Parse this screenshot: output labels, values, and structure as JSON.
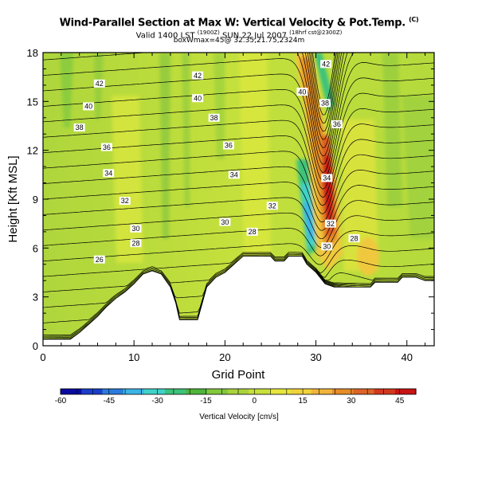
{
  "header": {
    "title": "Wind-Parallel Section at Max W: Vertical Velocity & Pot.Temp.",
    "title_mark": "(C)",
    "valid_pre": "Valid 1400 LST",
    "valid_sup1": "(1900Z)",
    "valid_mid": "SUN 22 Jul 2007",
    "valid_sup2": "(18hrf cst@2300Z)",
    "max_info": "boxWmax=45@ 32.35,21.75,2324m"
  },
  "chart_data": {
    "type": "heatmap",
    "xlabel": "Grid Point",
    "ylabel": "Height [Kft MSL]",
    "xlim": [
      0,
      43
    ],
    "ylim": [
      0,
      18
    ],
    "x_ticks": [
      0,
      10,
      20,
      30,
      40
    ],
    "y_ticks": [
      0,
      3,
      6,
      9,
      12,
      15,
      18
    ],
    "colorbar": {
      "label": "Vertical Velocity [cm/s]",
      "range": [
        -60,
        50
      ],
      "tick_values": [
        -60,
        -45,
        -30,
        -15,
        0,
        15,
        30,
        45
      ],
      "colors": [
        "#0a0aa0",
        "#1a3ec8",
        "#2a7adc",
        "#3cb4e6",
        "#40d2c8",
        "#3cc27a",
        "#4eb43c",
        "#82c83c",
        "#aad23c",
        "#c8e03c",
        "#e6e63c",
        "#f0d23c",
        "#f0b43c",
        "#e68c28",
        "#dc6428",
        "#d2381e",
        "#c81414"
      ]
    },
    "terrain_top_kft": [
      [
        0,
        0.4
      ],
      [
        3,
        0.4
      ],
      [
        4,
        0.8
      ],
      [
        5,
        1.3
      ],
      [
        6,
        1.8
      ],
      [
        7,
        2.4
      ],
      [
        8,
        2.9
      ],
      [
        9,
        3.3
      ],
      [
        10,
        3.8
      ],
      [
        11,
        4.4
      ],
      [
        12,
        4.6
      ],
      [
        13,
        4.4
      ],
      [
        14,
        3.6
      ],
      [
        14.6,
        2.6
      ],
      [
        15,
        1.6
      ],
      [
        17,
        1.6
      ],
      [
        17.6,
        2.8
      ],
      [
        18,
        3.6
      ],
      [
        19,
        4.2
      ],
      [
        20,
        4.5
      ],
      [
        21,
        5.0
      ],
      [
        22,
        5.5
      ],
      [
        25,
        5.5
      ],
      [
        25.5,
        5.2
      ],
      [
        26.5,
        5.2
      ],
      [
        27,
        5.5
      ],
      [
        28.5,
        5.5
      ],
      [
        29,
        5.0
      ],
      [
        30,
        4.5
      ],
      [
        31,
        3.8
      ],
      [
        32,
        3.6
      ],
      [
        36,
        3.6
      ],
      [
        36.5,
        3.9
      ],
      [
        39,
        3.9
      ],
      [
        39.5,
        4.2
      ],
      [
        41,
        4.2
      ],
      [
        42,
        4.0
      ],
      [
        43,
        4.0
      ]
    ],
    "theta_contours": [
      {
        "value": 26,
        "label_x": 6.2,
        "label_y": 5.3
      },
      {
        "value": 28,
        "label_x": 10.2,
        "label_y": 6.3
      },
      {
        "value": 30,
        "label_x": 10.2,
        "label_y": 7.2
      },
      {
        "value": 32,
        "label_x": 9.0,
        "label_y": 8.9
      },
      {
        "value": 34,
        "label_x": 7.2,
        "label_y": 10.6
      },
      {
        "value": 36,
        "label_x": 7.0,
        "label_y": 12.2
      },
      {
        "value": 38,
        "label_x": 4.0,
        "label_y": 13.4
      },
      {
        "value": 40,
        "label_x": 5.0,
        "label_y": 14.7
      },
      {
        "value": 42,
        "label_x": 6.2,
        "label_y": 16.1
      },
      {
        "value": 28,
        "label_x": 23.0,
        "label_y": 7.0
      },
      {
        "value": 30,
        "label_x": 20.0,
        "label_y": 7.6
      },
      {
        "value": 32,
        "label_x": 25.2,
        "label_y": 8.6
      },
      {
        "value": 34,
        "label_x": 21.0,
        "label_y": 10.5
      },
      {
        "value": 36,
        "label_x": 20.4,
        "label_y": 12.3
      },
      {
        "value": 38,
        "label_x": 18.8,
        "label_y": 14.0
      },
      {
        "value": 40,
        "label_x": 17.0,
        "label_y": 15.2
      },
      {
        "value": 42,
        "label_x": 17.0,
        "label_y": 16.6
      },
      {
        "value": 40,
        "label_x": 28.5,
        "label_y": 15.6
      },
      {
        "value": 38,
        "label_x": 31.0,
        "label_y": 14.9
      },
      {
        "value": 36,
        "label_x": 32.3,
        "label_y": 13.6
      },
      {
        "value": 34,
        "label_x": 31.2,
        "label_y": 10.3
      },
      {
        "value": 32,
        "label_x": 31.6,
        "label_y": 7.5
      },
      {
        "value": 30,
        "label_x": 31.2,
        "label_y": 6.1
      },
      {
        "value": 28,
        "label_x": 34.2,
        "label_y": 6.6
      },
      {
        "value": 42,
        "label_x": 31.1,
        "label_y": 17.3
      }
    ]
  }
}
